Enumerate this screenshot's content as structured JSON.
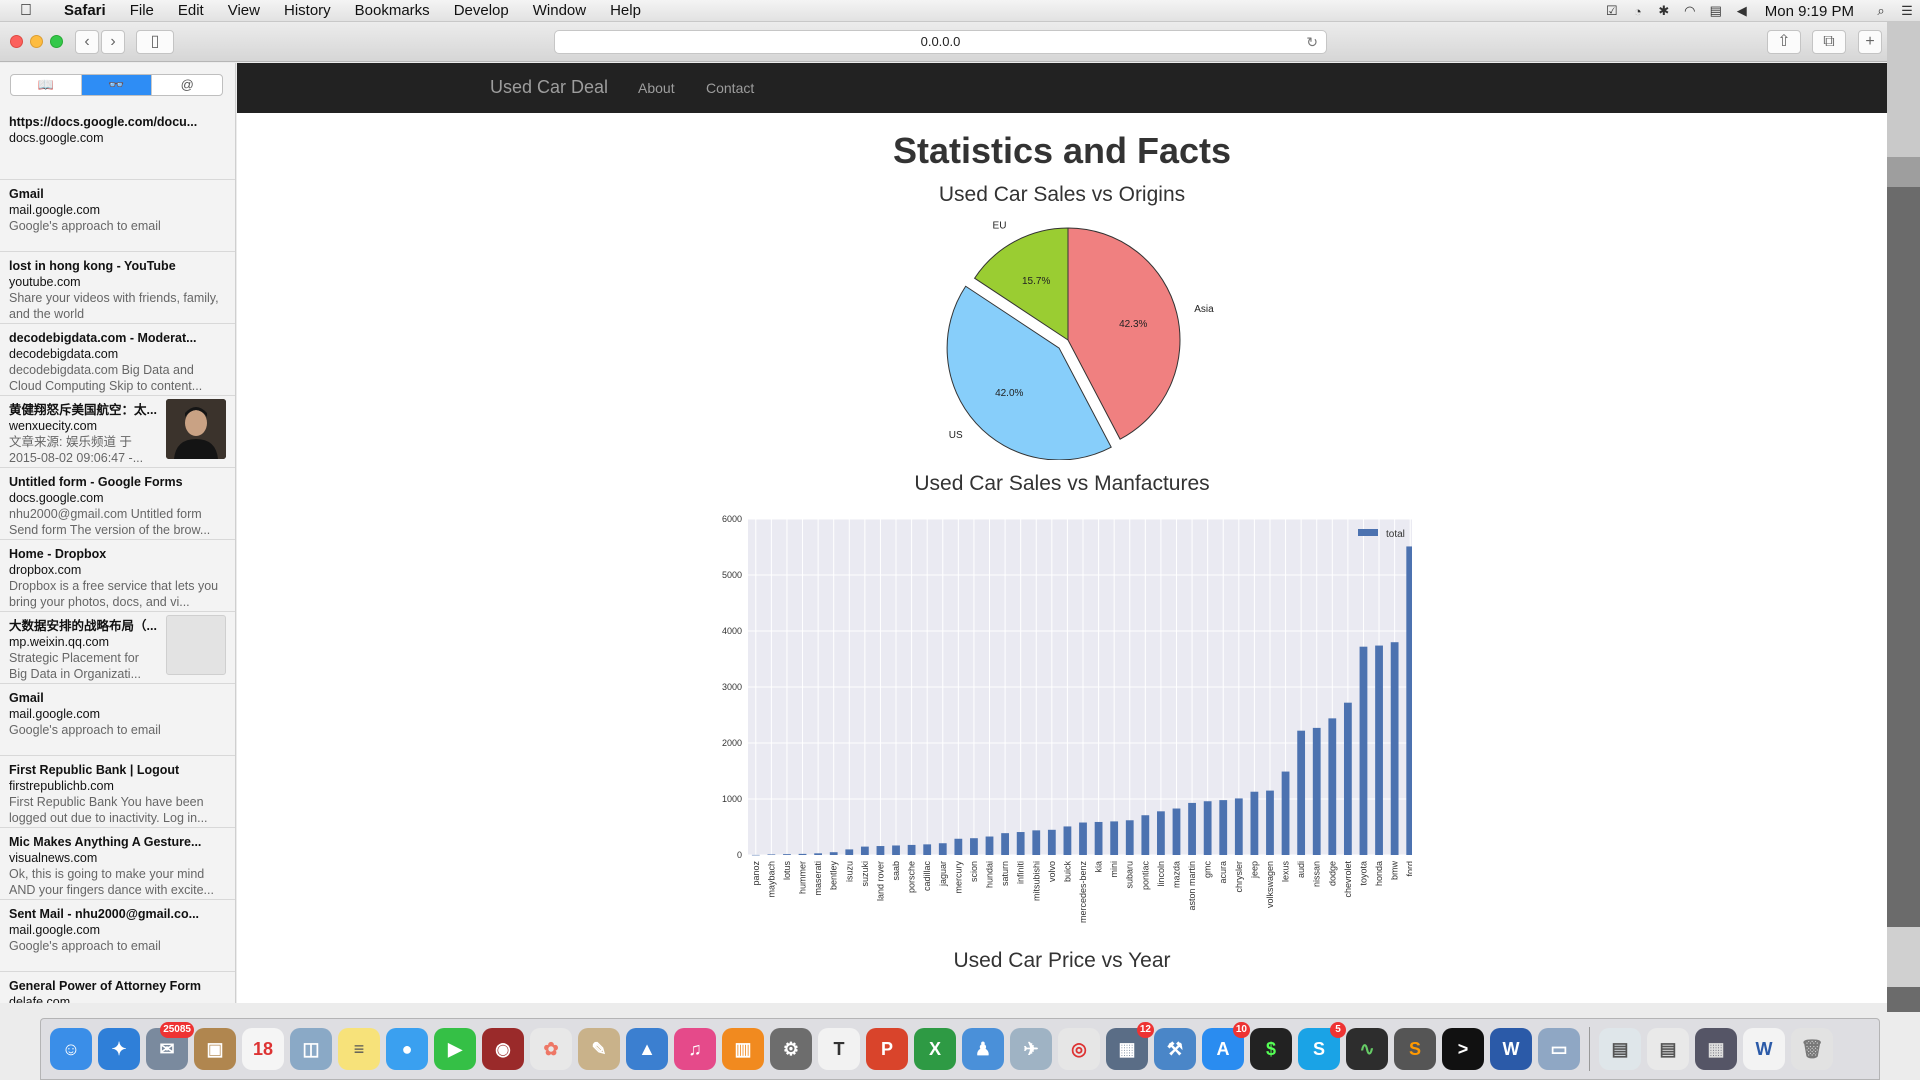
{
  "menubar": {
    "app_name": "Safari",
    "menus": [
      "File",
      "Edit",
      "View",
      "History",
      "Bookmarks",
      "Develop",
      "Window",
      "Help"
    ],
    "clock": "Mon 9:19 PM"
  },
  "browser": {
    "address": "0.0.0.0"
  },
  "sidebar": {
    "tabs": [
      "📖",
      "👓",
      "@"
    ],
    "items": [
      {
        "title": "https://docs.google.com/docu...",
        "domain": "docs.google.com",
        "desc": ""
      },
      {
        "title": "Gmail",
        "domain": "mail.google.com",
        "desc": "Google's approach to email"
      },
      {
        "title": "lost in hong kong - YouTube",
        "domain": "youtube.com",
        "desc": "Share your videos with friends, family, and the world"
      },
      {
        "title": "decodebigdata.com - Moderat...",
        "domain": "decodebigdata.com",
        "desc": "decodebigdata.com Big Data and Cloud Computing Skip to content..."
      },
      {
        "title": "黄健翔怒斥美国航空：太...",
        "domain": "wenxuecity.com",
        "desc": "文章来源: 娱乐频道 于 2015-08-02 09:06:47 -..."
      },
      {
        "title": "Untitled form - Google Forms",
        "domain": "docs.google.com",
        "desc": "nhu2000@gmail.com Untitled form Send form The version of the brow..."
      },
      {
        "title": "Home - Dropbox",
        "domain": "dropbox.com",
        "desc": "Dropbox is a free service that lets you bring your photos, docs, and vi..."
      },
      {
        "title": "大数据安排的战略布局（...",
        "domain": "mp.weixin.qq.com",
        "desc": "Strategic Placement for Big Data in Organizati..."
      },
      {
        "title": "Gmail",
        "domain": "mail.google.com",
        "desc": "Google's approach to email"
      },
      {
        "title": "First Republic Bank | Logout",
        "domain": "firstrepublichb.com",
        "desc": "First Republic Bank You have been logged out due to inactivity. Log in..."
      },
      {
        "title": "Mic Makes Anything A Gesture...",
        "domain": "visualnews.com",
        "desc": "Ok, this is going to make your mind AND your fingers dance with excite..."
      },
      {
        "title": "Sent Mail - nhu2000@gmail.co...",
        "domain": "mail.google.com",
        "desc": "Google's approach to email"
      },
      {
        "title": "General Power of Attorney Form",
        "domain": "delafe.com",
        "desc": ""
      }
    ]
  },
  "site": {
    "brand": "Used Car Deal",
    "nav": [
      "About",
      "Contact"
    ],
    "page_title": "Statistics and Facts",
    "chart_titles": [
      "Used Car Sales vs Origins",
      "Used Car Sales vs Manfactures",
      "Used Car Price vs Year"
    ]
  },
  "colors": {
    "navbar": "#222222",
    "pie_eu": "#9acd32",
    "pie_asia": "#f08080",
    "pie_us": "#87cefa",
    "bar": "#4c72b0",
    "bar_bg": "#eaeaf2"
  },
  "chart_data": [
    {
      "type": "pie",
      "title": "Used Car Sales vs Origins",
      "labels": [
        "Asia",
        "US",
        "EU"
      ],
      "values": [
        42.3,
        42.0,
        15.7
      ],
      "value_labels": [
        "42.3%",
        "42.0%",
        "15.7%"
      ],
      "exploded": "US"
    },
    {
      "type": "bar",
      "title": "Used Car Sales vs Manfactures",
      "xlabel": "",
      "ylabel": "",
      "ylim": [
        0,
        6000
      ],
      "yticks": [
        0,
        1000,
        2000,
        3000,
        4000,
        5000,
        6000
      ],
      "grid": true,
      "legend": "top-right",
      "categories": [
        "panoz",
        "maybach",
        "lotus",
        "hummer",
        "maserati",
        "bentley",
        "isuzu",
        "suzuki",
        "land rover",
        "saab",
        "porsche",
        "cadillac",
        "jaguar",
        "mercury",
        "scion",
        "hundai",
        "saturn",
        "infiniti",
        "mitsubishi",
        "volvo",
        "buick",
        "mercedes-benz",
        "kia",
        "mini",
        "subaru",
        "pontiac",
        "lincoln",
        "mazda",
        "aston martin",
        "gmc",
        "acura",
        "chrysler",
        "jeep",
        "volkswagen",
        "lexus",
        "audi",
        "nissan",
        "dodge",
        "chevrolet",
        "toyota",
        "honda",
        "bmw",
        "ford"
      ],
      "series": [
        {
          "name": "total",
          "values": [
            2,
            10,
            15,
            20,
            30,
            50,
            100,
            150,
            160,
            170,
            180,
            190,
            210,
            290,
            300,
            330,
            390,
            410,
            440,
            450,
            510,
            580,
            590,
            600,
            620,
            710,
            780,
            830,
            930,
            960,
            980,
            1010,
            1130,
            1150,
            1490,
            2220,
            2270,
            2440,
            2720,
            3720,
            3740,
            3800,
            5510
          ]
        }
      ]
    },
    {
      "type": "line",
      "title": "Used Car Price vs Year"
    }
  ],
  "dock": {
    "badges": [
      "25085",
      "18",
      "12",
      "10",
      "5"
    ]
  }
}
